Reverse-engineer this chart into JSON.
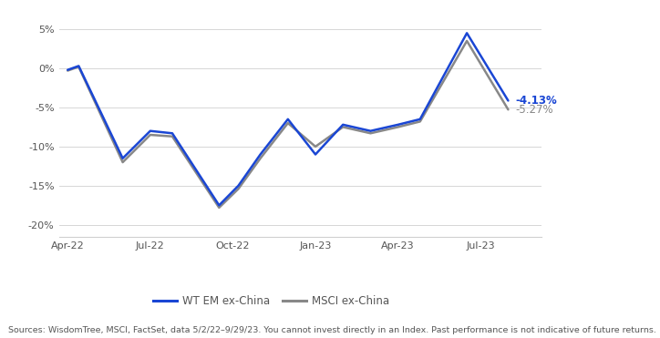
{
  "wt_data": [
    [
      0,
      -0.2
    ],
    [
      0.4,
      0.3
    ],
    [
      2.0,
      -11.5
    ],
    [
      3.0,
      -8.0
    ],
    [
      3.8,
      -8.3
    ],
    [
      5.5,
      -17.5
    ],
    [
      6.2,
      -15.0
    ],
    [
      7.0,
      -11.0
    ],
    [
      8.0,
      -6.5
    ],
    [
      9.0,
      -11.0
    ],
    [
      10.0,
      -7.2
    ],
    [
      11.0,
      -8.0
    ],
    [
      12.0,
      -7.2
    ],
    [
      12.8,
      -6.5
    ],
    [
      14.5,
      4.5
    ],
    [
      16.0,
      -4.13
    ]
  ],
  "msci_data": [
    [
      0,
      -0.3
    ],
    [
      0.4,
      0.2
    ],
    [
      2.0,
      -12.0
    ],
    [
      3.0,
      -8.5
    ],
    [
      3.8,
      -8.7
    ],
    [
      5.5,
      -17.8
    ],
    [
      6.2,
      -15.4
    ],
    [
      7.0,
      -11.5
    ],
    [
      8.0,
      -7.0
    ],
    [
      9.0,
      -10.0
    ],
    [
      10.0,
      -7.5
    ],
    [
      11.0,
      -8.3
    ],
    [
      12.0,
      -7.5
    ],
    [
      12.8,
      -6.8
    ],
    [
      14.5,
      3.5
    ],
    [
      16.0,
      -5.27
    ]
  ],
  "wt_color": "#1a46d4",
  "msci_color": "#888888",
  "wt_label": "WT EM ex-China",
  "msci_label": "MSCI ex-China",
  "wt_end_label": "-4.13%",
  "msci_end_label": "-5.27%",
  "yticks": [
    5,
    0,
    -5,
    -10,
    -15,
    -20
  ],
  "xtick_labels": [
    "Apr-22",
    "Jul-22",
    "Oct-22",
    "Jan-23",
    "Apr-23",
    "Jul-23"
  ],
  "xtick_positions": [
    0.0,
    3.0,
    6.0,
    9.0,
    12.0,
    15.0
  ],
  "xlim": [
    -0.3,
    17.2
  ],
  "ylim": [
    -21.5,
    7.0
  ],
  "source_text": "Sources: WisdomTree, MSCI, FactSet, data 5/2/22–9/29/23. You cannot invest directly in an Index. Past performance is not indicative of future returns.",
  "background_color": "#ffffff",
  "linewidth": 1.8,
  "grid_color": "#d0d0d0",
  "tick_color": "#555555",
  "tick_fontsize": 8.0,
  "label_fontsize": 8.5,
  "source_fontsize": 6.8
}
